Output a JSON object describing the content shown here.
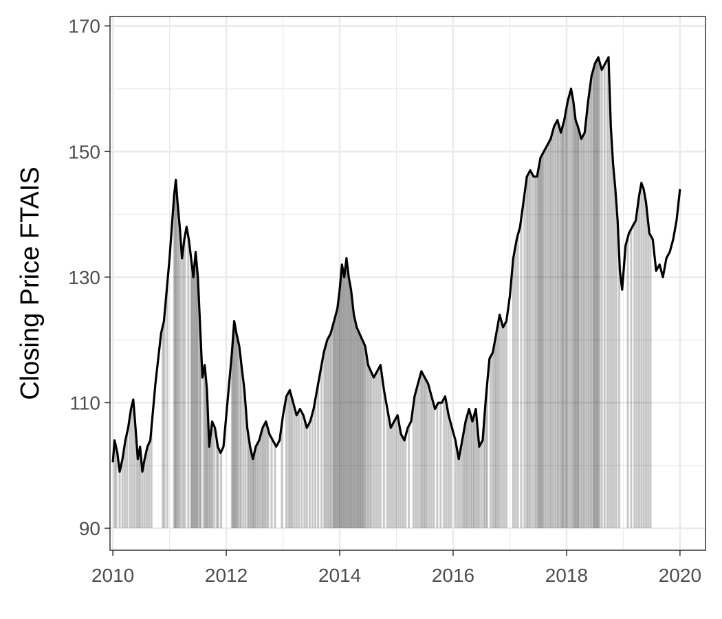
{
  "chart_data": {
    "type": "line",
    "title": "",
    "xlabel": "",
    "ylabel": "Closing Price FTAIS",
    "xlim": [
      2009.95,
      2020.45
    ],
    "ylim": [
      86.5,
      171.5
    ],
    "x_ticks": [
      2010,
      2012,
      2014,
      2016,
      2018,
      2020
    ],
    "x_tick_labels": [
      "2010",
      "2012",
      "2014",
      "2016",
      "2018",
      "2020"
    ],
    "y_ticks": [
      90,
      110,
      130,
      150,
      170
    ],
    "y_tick_labels": [
      "90",
      "110",
      "130",
      "150",
      "170"
    ],
    "y_minor_ticks": [
      100,
      120,
      140,
      160
    ],
    "x_minor_ticks": [
      2011,
      2013,
      2015,
      2017,
      2019
    ],
    "grid": true,
    "baseline": 90,
    "colors": {
      "line": "#000000",
      "bars": "#000000",
      "grid": "#ebebeb",
      "panel_border": "#333333"
    },
    "series": [
      {
        "points": [
          [
            2010.0,
            100.5
          ],
          [
            2010.03,
            104
          ],
          [
            2010.08,
            102
          ],
          [
            2010.12,
            99
          ],
          [
            2010.17,
            101
          ],
          [
            2010.22,
            104
          ],
          [
            2010.27,
            106
          ],
          [
            2010.32,
            109
          ],
          [
            2010.36,
            110.5
          ],
          [
            2010.4,
            106
          ],
          [
            2010.44,
            101
          ],
          [
            2010.48,
            103
          ],
          [
            2010.52,
            99
          ],
          [
            2010.56,
            101
          ],
          [
            2010.61,
            103
          ],
          [
            2010.66,
            104
          ],
          [
            2010.7,
            108
          ],
          [
            2010.75,
            113
          ],
          [
            2010.8,
            117
          ],
          [
            2010.85,
            121
          ],
          [
            2010.9,
            123
          ],
          [
            2010.95,
            128
          ],
          [
            2011.0,
            133
          ],
          [
            2011.04,
            138
          ],
          [
            2011.08,
            143
          ],
          [
            2011.11,
            145.5
          ],
          [
            2011.14,
            142
          ],
          [
            2011.18,
            138
          ],
          [
            2011.22,
            133
          ],
          [
            2011.26,
            136
          ],
          [
            2011.3,
            138
          ],
          [
            2011.34,
            136
          ],
          [
            2011.38,
            133
          ],
          [
            2011.42,
            130
          ],
          [
            2011.46,
            134
          ],
          [
            2011.5,
            130
          ],
          [
            2011.54,
            122
          ],
          [
            2011.58,
            114
          ],
          [
            2011.62,
            116
          ],
          [
            2011.66,
            112
          ],
          [
            2011.7,
            103
          ],
          [
            2011.75,
            107
          ],
          [
            2011.8,
            106
          ],
          [
            2011.85,
            103
          ],
          [
            2011.9,
            102
          ],
          [
            2011.95,
            103
          ],
          [
            2012.0,
            108
          ],
          [
            2012.05,
            113
          ],
          [
            2012.1,
            118
          ],
          [
            2012.14,
            123
          ],
          [
            2012.18,
            121
          ],
          [
            2012.23,
            119
          ],
          [
            2012.28,
            115
          ],
          [
            2012.32,
            112
          ],
          [
            2012.37,
            106
          ],
          [
            2012.42,
            103
          ],
          [
            2012.47,
            101
          ],
          [
            2012.52,
            103
          ],
          [
            2012.58,
            104
          ],
          [
            2012.64,
            106
          ],
          [
            2012.7,
            107
          ],
          [
            2012.76,
            105
          ],
          [
            2012.82,
            104
          ],
          [
            2012.88,
            103
          ],
          [
            2012.94,
            104
          ],
          [
            2013.0,
            108
          ],
          [
            2013.06,
            111
          ],
          [
            2013.12,
            112
          ],
          [
            2013.18,
            110
          ],
          [
            2013.24,
            108
          ],
          [
            2013.3,
            109
          ],
          [
            2013.36,
            108
          ],
          [
            2013.42,
            106
          ],
          [
            2013.48,
            107
          ],
          [
            2013.54,
            109
          ],
          [
            2013.6,
            112
          ],
          [
            2013.66,
            115
          ],
          [
            2013.72,
            118
          ],
          [
            2013.78,
            120
          ],
          [
            2013.84,
            121
          ],
          [
            2013.9,
            123
          ],
          [
            2013.96,
            125
          ],
          [
            2014.0,
            128
          ],
          [
            2014.04,
            132
          ],
          [
            2014.08,
            130
          ],
          [
            2014.12,
            133
          ],
          [
            2014.16,
            130
          ],
          [
            2014.2,
            128
          ],
          [
            2014.25,
            124
          ],
          [
            2014.3,
            122
          ],
          [
            2014.35,
            121
          ],
          [
            2014.4,
            120
          ],
          [
            2014.45,
            119
          ],
          [
            2014.5,
            116
          ],
          [
            2014.55,
            115
          ],
          [
            2014.6,
            114
          ],
          [
            2014.66,
            115
          ],
          [
            2014.72,
            116
          ],
          [
            2014.78,
            112
          ],
          [
            2014.84,
            109
          ],
          [
            2014.9,
            106
          ],
          [
            2014.96,
            107
          ],
          [
            2015.02,
            108
          ],
          [
            2015.08,
            105
          ],
          [
            2015.14,
            104
          ],
          [
            2015.2,
            106
          ],
          [
            2015.26,
            107
          ],
          [
            2015.32,
            111
          ],
          [
            2015.38,
            113
          ],
          [
            2015.44,
            115
          ],
          [
            2015.5,
            114
          ],
          [
            2015.56,
            113
          ],
          [
            2015.62,
            111
          ],
          [
            2015.68,
            109
          ],
          [
            2015.74,
            110
          ],
          [
            2015.8,
            110
          ],
          [
            2015.86,
            111
          ],
          [
            2015.92,
            108
          ],
          [
            2015.98,
            106
          ],
          [
            2016.04,
            104
          ],
          [
            2016.1,
            101
          ],
          [
            2016.16,
            104
          ],
          [
            2016.22,
            107
          ],
          [
            2016.28,
            109
          ],
          [
            2016.34,
            107
          ],
          [
            2016.4,
            109
          ],
          [
            2016.46,
            103
          ],
          [
            2016.52,
            104
          ],
          [
            2016.58,
            111
          ],
          [
            2016.64,
            117
          ],
          [
            2016.7,
            118
          ],
          [
            2016.76,
            121
          ],
          [
            2016.82,
            124
          ],
          [
            2016.88,
            122
          ],
          [
            2016.94,
            123
          ],
          [
            2017.0,
            127
          ],
          [
            2017.06,
            133
          ],
          [
            2017.12,
            136
          ],
          [
            2017.18,
            138
          ],
          [
            2017.24,
            142
          ],
          [
            2017.3,
            146
          ],
          [
            2017.36,
            147
          ],
          [
            2017.42,
            146
          ],
          [
            2017.48,
            146
          ],
          [
            2017.54,
            149
          ],
          [
            2017.6,
            150
          ],
          [
            2017.66,
            151
          ],
          [
            2017.72,
            152
          ],
          [
            2017.78,
            154
          ],
          [
            2017.84,
            155
          ],
          [
            2017.9,
            153
          ],
          [
            2017.96,
            155
          ],
          [
            2018.02,
            158
          ],
          [
            2018.08,
            160
          ],
          [
            2018.12,
            158
          ],
          [
            2018.16,
            155
          ],
          [
            2018.2,
            154
          ],
          [
            2018.26,
            152
          ],
          [
            2018.32,
            153
          ],
          [
            2018.38,
            158
          ],
          [
            2018.44,
            162
          ],
          [
            2018.5,
            164
          ],
          [
            2018.56,
            165
          ],
          [
            2018.62,
            163
          ],
          [
            2018.68,
            164
          ],
          [
            2018.74,
            165
          ],
          [
            2018.78,
            154
          ],
          [
            2018.82,
            148
          ],
          [
            2018.86,
            144
          ],
          [
            2018.9,
            139
          ],
          [
            2018.94,
            131
          ],
          [
            2018.98,
            128
          ],
          [
            2019.04,
            135
          ],
          [
            2019.1,
            137
          ],
          [
            2019.16,
            138
          ],
          [
            2019.22,
            139
          ],
          [
            2019.28,
            143
          ],
          [
            2019.32,
            145
          ],
          [
            2019.36,
            144
          ],
          [
            2019.4,
            142
          ],
          [
            2019.46,
            137
          ],
          [
            2019.52,
            136
          ],
          [
            2019.58,
            131
          ],
          [
            2019.64,
            132
          ],
          [
            2019.7,
            130
          ],
          [
            2019.76,
            133
          ],
          [
            2019.82,
            134
          ],
          [
            2019.88,
            136
          ],
          [
            2019.94,
            139
          ],
          [
            2020.0,
            144
          ]
        ]
      }
    ],
    "bar_x": [
      2010.03,
      2010.06,
      2010.12,
      2010.17,
      2010.21,
      2010.25,
      2010.3,
      2010.34,
      2010.38,
      2010.42,
      2010.45,
      2010.48,
      2010.52,
      2010.56,
      2010.6,
      2010.64,
      2010.68,
      2010.88,
      2010.91,
      2010.96,
      2011.08,
      2011.1,
      2011.12,
      2011.14,
      2011.17,
      2011.2,
      2011.24,
      2011.27,
      2011.33,
      2011.38,
      2011.4,
      2011.42,
      2011.44,
      2011.46,
      2011.48,
      2011.5,
      2011.53,
      2011.55,
      2011.6,
      2011.63,
      2011.65,
      2011.67,
      2011.7,
      2011.72,
      2011.75,
      2011.78,
      2011.83,
      2011.86,
      2011.91,
      2012.1,
      2012.12,
      2012.14,
      2012.16,
      2012.18,
      2012.2,
      2012.23,
      2012.26,
      2012.3,
      2012.34,
      2012.38,
      2012.41,
      2012.43,
      2012.46,
      2012.48,
      2012.5,
      2012.53,
      2012.56,
      2012.59,
      2012.62,
      2012.65,
      2012.68,
      2012.71,
      2012.74,
      2012.8,
      2012.86,
      2012.98,
      2013.06,
      2013.1,
      2013.13,
      2013.16,
      2013.2,
      2013.24,
      2013.28,
      2013.33,
      2013.38,
      2013.42,
      2013.47,
      2013.52,
      2013.57,
      2013.62,
      2013.68,
      2013.73,
      2013.76,
      2013.79,
      2013.82,
      2013.85,
      2013.88,
      2013.9,
      2013.92,
      2013.94,
      2013.96,
      2013.98,
      2014.0,
      2014.02,
      2014.04,
      2014.06,
      2014.08,
      2014.1,
      2014.12,
      2014.14,
      2014.16,
      2014.18,
      2014.2,
      2014.22,
      2014.24,
      2014.26,
      2014.28,
      2014.3,
      2014.32,
      2014.34,
      2014.36,
      2014.38,
      2014.4,
      2014.42,
      2014.44,
      2014.47,
      2014.5,
      2014.53,
      2014.56,
      2014.6,
      2014.64,
      2014.68,
      2014.72,
      2014.78,
      2014.84,
      2014.88,
      2014.92,
      2014.96,
      2015.0,
      2015.04,
      2015.08,
      2015.12,
      2015.16,
      2015.22,
      2015.3,
      2015.34,
      2015.38,
      2015.42,
      2015.45,
      2015.48,
      2015.51,
      2015.54,
      2015.58,
      2015.62,
      2015.66,
      2015.72,
      2015.78,
      2015.84,
      2015.88,
      2015.92,
      2015.96,
      2016.04,
      2016.08,
      2016.12,
      2016.16,
      2016.19,
      2016.22,
      2016.25,
      2016.28,
      2016.31,
      2016.34,
      2016.37,
      2016.4,
      2016.43,
      2016.46,
      2016.5,
      2016.54,
      2016.57,
      2016.6,
      2016.66,
      2016.7,
      2016.73,
      2016.76,
      2016.79,
      2016.82,
      2016.86,
      2016.9,
      2016.94,
      2017.06,
      2017.1,
      2017.14,
      2017.2,
      2017.26,
      2017.3,
      2017.33,
      2017.36,
      2017.4,
      2017.44,
      2017.47,
      2017.5,
      2017.52,
      2017.54,
      2017.56,
      2017.58,
      2017.61,
      2017.64,
      2017.67,
      2017.7,
      2017.73,
      2017.76,
      2017.79,
      2017.82,
      2017.85,
      2017.88,
      2017.91,
      2017.93,
      2017.95,
      2017.98,
      2018.0,
      2018.03,
      2018.06,
      2018.09,
      2018.12,
      2018.14,
      2018.16,
      2018.18,
      2018.2,
      2018.22,
      2018.25,
      2018.28,
      2018.31,
      2018.34,
      2018.37,
      2018.4,
      2018.43,
      2018.46,
      2018.48,
      2018.5,
      2018.52,
      2018.54,
      2018.56,
      2018.58,
      2018.62,
      2018.67,
      2018.72,
      2018.76,
      2018.8,
      2018.84,
      2018.88,
      2018.93,
      2019.08,
      2019.14,
      2019.2,
      2019.24,
      2019.28,
      2019.32,
      2019.36,
      2019.4,
      2019.44,
      2019.48
    ]
  }
}
